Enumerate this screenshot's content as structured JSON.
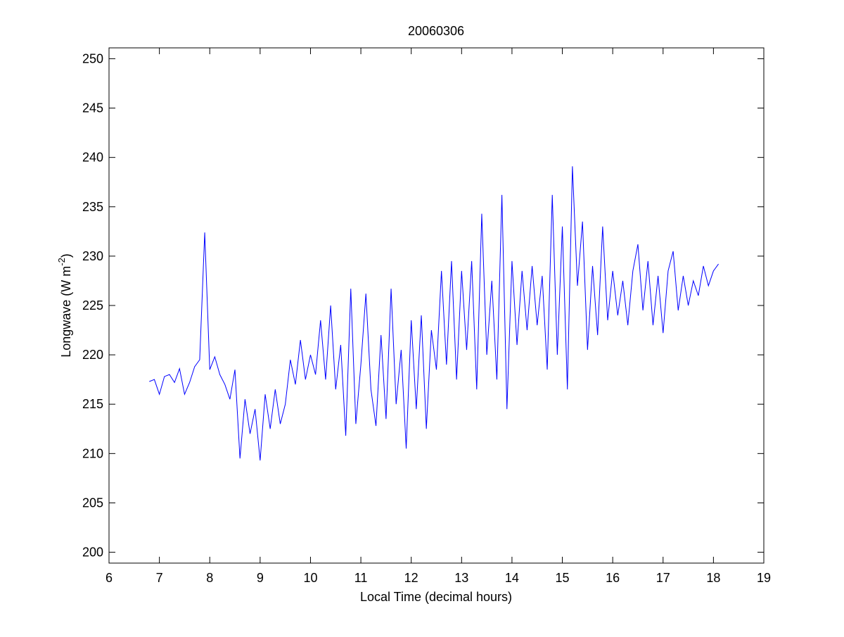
{
  "chart_data": {
    "type": "line",
    "title": "20060306",
    "xlabel": "Local Time (decimal hours)",
    "ylabel": [
      "Longwave (W m",
      "-2",
      ")"
    ],
    "color": "#0000ff",
    "xlim": [
      6,
      19
    ],
    "xticks": [
      6,
      7,
      8,
      9,
      10,
      11,
      12,
      13,
      14,
      15,
      16,
      17,
      18,
      19
    ],
    "ylim": [
      198.9,
      251.1
    ],
    "yticks": [
      200,
      205,
      210,
      215,
      220,
      225,
      230,
      235,
      240,
      245,
      250
    ],
    "grid": false,
    "x": [
      6.8,
      6.9,
      7.0,
      7.1,
      7.2,
      7.3,
      7.4,
      7.5,
      7.6,
      7.7,
      7.8,
      7.9,
      8.0,
      8.1,
      8.2,
      8.3,
      8.4,
      8.5,
      8.6,
      8.7,
      8.8,
      8.9,
      9.0,
      9.1,
      9.2,
      9.3,
      9.4,
      9.5,
      9.6,
      9.7,
      9.8,
      9.9,
      10.0,
      10.1,
      10.2,
      10.3,
      10.4,
      10.5,
      10.6,
      10.7,
      10.8,
      10.9,
      11.0,
      11.1,
      11.2,
      11.3,
      11.4,
      11.5,
      11.6,
      11.7,
      11.8,
      11.9,
      12.0,
      12.1,
      12.2,
      12.3,
      12.4,
      12.5,
      12.6,
      12.7,
      12.8,
      12.9,
      13.0,
      13.1,
      13.2,
      13.3,
      13.4,
      13.5,
      13.6,
      13.7,
      13.8,
      13.9,
      14.0,
      14.1,
      14.2,
      14.3,
      14.4,
      14.5,
      14.6,
      14.7,
      14.8,
      14.9,
      15.0,
      15.1,
      15.2,
      15.3,
      15.4,
      15.5,
      15.6,
      15.7,
      15.8,
      15.9,
      16.0,
      16.1,
      16.2,
      16.3,
      16.4,
      16.5,
      16.6,
      16.7,
      16.8,
      16.9,
      17.0,
      17.1,
      17.2,
      17.3,
      17.4,
      17.5,
      17.6,
      17.7,
      17.8,
      17.9,
      18.0,
      18.1
    ],
    "values": [
      217.3,
      217.5,
      216.0,
      217.8,
      218.0,
      217.2,
      218.6,
      216.0,
      217.2,
      218.8,
      219.5,
      232.4,
      218.5,
      219.8,
      218.0,
      217.0,
      215.5,
      218.5,
      209.5,
      215.5,
      212.0,
      214.5,
      209.3,
      216.0,
      212.5,
      216.5,
      213.0,
      215.0,
      219.5,
      217.0,
      221.5,
      217.5,
      220.0,
      218.0,
      223.5,
      217.5,
      225.0,
      216.5,
      221.0,
      211.8,
      226.7,
      213.0,
      219.0,
      226.2,
      216.5,
      212.8,
      222.0,
      213.5,
      226.7,
      215.0,
      220.5,
      210.5,
      223.5,
      214.5,
      224.0,
      212.5,
      222.5,
      218.5,
      228.5,
      219.0,
      229.5,
      217.5,
      228.5,
      220.5,
      229.5,
      216.5,
      234.3,
      220.0,
      227.5,
      217.5,
      236.2,
      214.5,
      229.5,
      221.0,
      228.5,
      222.5,
      229.0,
      223.0,
      228.0,
      218.5,
      236.2,
      220.0,
      233.0,
      216.5,
      239.1,
      227.0,
      233.5,
      220.5,
      229.0,
      222.0,
      233.0,
      223.5,
      228.5,
      224.0,
      227.5,
      223.0,
      228.5,
      231.2,
      224.5,
      229.5,
      223.0,
      228.0,
      222.2,
      228.5,
      230.5,
      224.5,
      228.0,
      225.0,
      227.5,
      226.0,
      229.0,
      227.0,
      228.5,
      229.2
    ]
  }
}
